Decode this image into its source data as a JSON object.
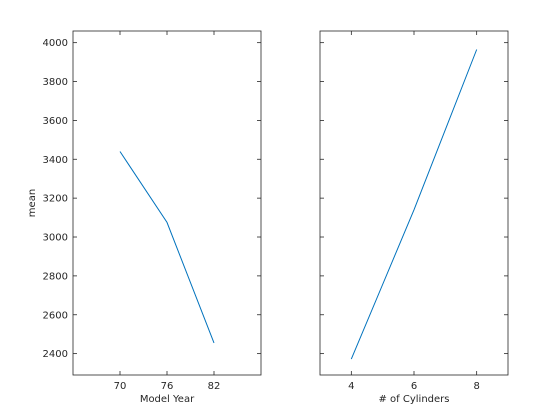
{
  "figure": {
    "background": "#ffffff",
    "line_color": "#0072BD",
    "axis_color": "#262626"
  },
  "chart_data": [
    {
      "type": "line",
      "title": "",
      "xlabel": "Model Year",
      "ylabel": "mean",
      "x": [
        70,
        76,
        82
      ],
      "xticks": [
        70,
        76,
        82
      ],
      "xlim": [
        64,
        88
      ],
      "ylim": [
        2290,
        4060
      ],
      "yticks": [
        2400,
        2600,
        2800,
        3000,
        3200,
        3400,
        3600,
        3800,
        4000
      ],
      "grid": false,
      "series": [
        {
          "values": [
            3440,
            3075,
            2455
          ]
        }
      ]
    },
    {
      "type": "line",
      "title": "",
      "xlabel": "# of Cylinders",
      "ylabel": "",
      "x": [
        4,
        6,
        8
      ],
      "xticks": [
        4,
        6,
        8
      ],
      "xlim": [
        3,
        9
      ],
      "ylim": [
        2290,
        4060
      ],
      "yticks": [
        2400,
        2600,
        2800,
        3000,
        3200,
        3400,
        3600,
        3800,
        4000
      ],
      "show_y_tick_labels": false,
      "grid": false,
      "series": [
        {
          "values": [
            2372,
            3140,
            3965
          ]
        }
      ]
    }
  ]
}
